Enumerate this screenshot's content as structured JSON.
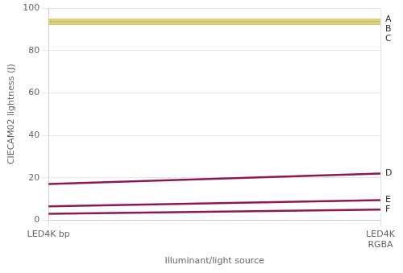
{
  "chart_data": {
    "type": "line",
    "x_label": "Illuminant/light source",
    "y_label": "CIECAM02 lightness (J)",
    "categories": [
      "LED4K bp",
      "LED4K\nRGBA"
    ],
    "series": [
      {
        "name": "A",
        "color": "#d4ca6e",
        "values": [
          94.5,
          94.5
        ]
      },
      {
        "name": "B",
        "color": "#cdc05f",
        "values": [
          93.5,
          93.5
        ]
      },
      {
        "name": "C",
        "color": "#d4ca6e",
        "values": [
          92.5,
          92.5
        ]
      },
      {
        "name": "D",
        "color": "#8b1a52",
        "values": [
          17.0,
          22.0
        ]
      },
      {
        "name": "E",
        "color": "#8b1a52",
        "values": [
          6.5,
          9.5
        ]
      },
      {
        "name": "F",
        "color": "#8b1a52",
        "values": [
          3.0,
          5.0
        ]
      }
    ],
    "annotations": [
      {
        "text": "A",
        "y": 94.5
      },
      {
        "text": "B",
        "y": 93.5
      },
      {
        "text": "C",
        "y": 92.5
      },
      {
        "text": "D",
        "y": 22.0
      },
      {
        "text": "E",
        "y": 9.5
      },
      {
        "text": "F",
        "y": 5.0
      }
    ],
    "ylim": [
      0,
      100
    ],
    "yticks": [
      0,
      20,
      40,
      60,
      80,
      100
    ],
    "grid": true
  }
}
